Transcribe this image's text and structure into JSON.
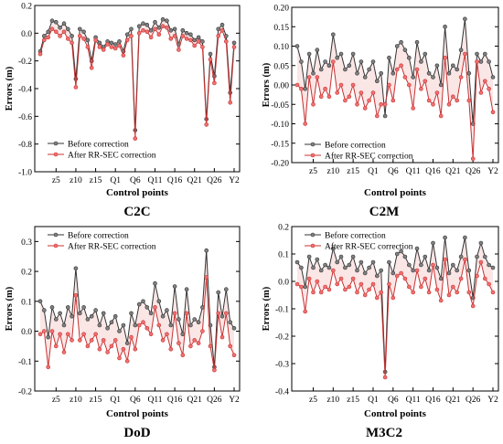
{
  "colors": {
    "before": "#333333",
    "before_fill": "#808080",
    "after": "#c83232",
    "after_fill": "#f07070",
    "band": "#f6c8c8"
  },
  "chart_data": [
    {
      "type": "line",
      "title": "C2C",
      "xlabel": "Control points",
      "ylabel": "Errors (m)",
      "ylim": [
        -1.0,
        0.2
      ],
      "yticks": [
        0.2,
        0.0,
        -0.2,
        -0.4,
        -0.6,
        -0.8,
        -1.0
      ],
      "ytick_labels": [
        "0.2",
        "0.0",
        "-0.2",
        "-0.4",
        "-0.6",
        "-0.8",
        "-1.0"
      ],
      "xlim": [
        1,
        50
      ],
      "xticks": [
        5,
        10,
        15,
        20,
        25,
        30,
        35,
        40,
        45,
        50
      ],
      "xtick_labels": [
        "z5",
        "z10",
        "z15",
        "Q1",
        "Q6",
        "Q11",
        "Q16",
        "Q21",
        "Q26",
        "Y2"
      ],
      "legend": "center-left",
      "series": [
        {
          "name": "Before correction",
          "values": [
            -0.13,
            -0.02,
            0.01,
            0.09,
            0.08,
            0.04,
            0.07,
            0.03,
            -0.02,
            -0.33,
            0.03,
            0.01,
            -0.05,
            -0.2,
            -0.03,
            -0.07,
            -0.1,
            -0.06,
            -0.07,
            -0.08,
            -0.06,
            -0.13,
            -0.01,
            0.03,
            -0.7,
            0.05,
            0.07,
            0.06,
            0.02,
            0.08,
            0.04,
            0.1,
            0.09,
            0.02,
            0.03,
            -0.08,
            0.02,
            0.0,
            -0.01,
            -0.05,
            -0.03,
            -0.06,
            -0.62,
            -0.15,
            -0.31,
            0.03,
            0.06,
            -0.02,
            -0.43,
            -0.07
          ]
        },
        {
          "name": "After RR-SEC correction",
          "values": [
            -0.15,
            -0.05,
            -0.03,
            0.03,
            0.01,
            -0.02,
            0.01,
            -0.04,
            -0.07,
            -0.39,
            -0.02,
            -0.04,
            -0.1,
            -0.25,
            -0.05,
            -0.1,
            -0.12,
            -0.08,
            -0.1,
            -0.11,
            -0.09,
            -0.16,
            -0.05,
            -0.02,
            -0.76,
            0.0,
            0.02,
            0.01,
            -0.03,
            0.03,
            -0.01,
            0.05,
            0.04,
            -0.04,
            -0.02,
            -0.12,
            -0.02,
            -0.04,
            -0.05,
            -0.09,
            -0.06,
            -0.1,
            -0.66,
            -0.19,
            -0.36,
            -0.02,
            0.02,
            -0.06,
            -0.5,
            -0.1
          ]
        }
      ]
    },
    {
      "type": "line",
      "title": "C2M",
      "xlabel": "Control points",
      "ylabel": "Errors (m)",
      "ylim": [
        -0.2,
        0.2
      ],
      "yticks": [
        0.2,
        0.15,
        0.1,
        0.05,
        0.0,
        -0.05,
        -0.1,
        -0.15,
        -0.2
      ],
      "ytick_labels": [
        "0.20",
        "0.15",
        "0.10",
        "0.05",
        "0.00",
        "-0.05",
        "-0.10",
        "-0.15",
        "-0.20"
      ],
      "xlim": [
        1,
        50
      ],
      "xticks": [
        5,
        10,
        15,
        20,
        25,
        30,
        35,
        40,
        45,
        50
      ],
      "xtick_labels": [
        "z5",
        "z10",
        "z15",
        "Q1",
        "Q6",
        "Q11",
        "Q16",
        "Q21",
        "Q26",
        "Y2"
      ],
      "legend": "lower-left",
      "series": [
        {
          "name": "Before correction",
          "values": [
            0.1,
            0.06,
            -0.01,
            0.08,
            0.03,
            0.09,
            0.04,
            0.06,
            0.05,
            0.13,
            0.07,
            0.08,
            0.04,
            0.05,
            0.08,
            0.03,
            0.06,
            0.02,
            0.04,
            0.06,
            0.01,
            0.03,
            -0.08,
            0.07,
            0.03,
            0.1,
            0.11,
            0.09,
            0.07,
            0.02,
            0.11,
            0.06,
            0.08,
            0.03,
            0.02,
            0.05,
            0.0,
            0.15,
            0.03,
            0.05,
            0.04,
            0.09,
            0.17,
            0.03,
            -0.1,
            0.08,
            0.06,
            0.08,
            0.06,
            0.02
          ]
        },
        {
          "name": "After RR-SEC correction",
          "values": [
            0.0,
            -0.01,
            -0.1,
            0.02,
            -0.05,
            0.02,
            -0.03,
            -0.01,
            -0.03,
            0.06,
            -0.02,
            0.0,
            -0.04,
            -0.03,
            0.0,
            -0.05,
            -0.02,
            -0.06,
            -0.04,
            -0.02,
            -0.08,
            -0.05,
            -0.05,
            0.0,
            -0.04,
            0.04,
            0.05,
            0.02,
            0.0,
            -0.06,
            0.04,
            -0.01,
            0.01,
            -0.04,
            -0.05,
            -0.02,
            -0.08,
            0.07,
            -0.05,
            -0.03,
            -0.04,
            0.02,
            0.08,
            -0.04,
            -0.19,
            0.06,
            -0.02,
            0.01,
            -0.01,
            -0.07
          ]
        }
      ]
    },
    {
      "type": "line",
      "title": "DoD",
      "xlabel": "Control points",
      "ylabel": "Errors (m)",
      "ylim": [
        -0.2,
        0.35
      ],
      "yticks": [
        0.3,
        0.2,
        0.1,
        0.0,
        -0.1,
        -0.2
      ],
      "ytick_labels": [
        "0.3",
        "0.2",
        "0.1",
        "0.0",
        "-0.1",
        "-0.2"
      ],
      "xlim": [
        1,
        50
      ],
      "xticks": [
        5,
        10,
        15,
        20,
        25,
        30,
        35,
        40,
        45,
        50
      ],
      "xtick_labels": [
        "z5",
        "z10",
        "z15",
        "Q1",
        "Q6",
        "Q11",
        "Q16",
        "Q21",
        "Q26",
        "Y2"
      ],
      "legend": "top-left",
      "series": [
        {
          "name": "Before correction",
          "values": [
            0.1,
            0.07,
            -0.02,
            0.08,
            0.04,
            0.06,
            0.02,
            0.08,
            0.05,
            0.21,
            0.06,
            0.08,
            0.04,
            0.05,
            0.07,
            0.02,
            0.06,
            0.01,
            0.03,
            0.05,
            0.0,
            0.02,
            -0.04,
            0.06,
            0.02,
            0.09,
            0.1,
            0.08,
            0.06,
            0.16,
            0.1,
            0.05,
            0.07,
            0.02,
            0.15,
            0.04,
            -0.01,
            0.14,
            0.02,
            0.04,
            0.03,
            0.08,
            0.27,
            0.02,
            -0.12,
            0.13,
            0.05,
            0.14,
            0.03,
            0.01
          ]
        },
        {
          "name": "After RR-SEC correction",
          "values": [
            -0.01,
            0.0,
            -0.12,
            0.0,
            -0.05,
            -0.01,
            -0.07,
            -0.01,
            -0.03,
            0.12,
            -0.03,
            -0.01,
            -0.05,
            -0.03,
            -0.01,
            -0.06,
            -0.03,
            -0.07,
            -0.05,
            -0.03,
            -0.09,
            -0.06,
            -0.1,
            -0.02,
            -0.06,
            0.02,
            0.03,
            0.01,
            -0.01,
            0.08,
            0.02,
            -0.03,
            -0.01,
            -0.06,
            0.06,
            -0.04,
            -0.08,
            0.06,
            -0.05,
            -0.03,
            -0.04,
            0.0,
            0.18,
            -0.05,
            -0.13,
            0.06,
            -0.02,
            0.06,
            -0.05,
            -0.08
          ]
        }
      ]
    },
    {
      "type": "line",
      "title": "M3C2",
      "xlabel": "Control points",
      "ylabel": "Errors (m)",
      "ylim": [
        -0.4,
        0.2
      ],
      "yticks": [
        0.2,
        0.1,
        0.0,
        -0.1,
        -0.2,
        -0.3,
        -0.4
      ],
      "ytick_labels": [
        "0.2",
        "0.1",
        "0.0",
        "-0.1",
        "-0.2",
        "-0.3",
        "-0.4"
      ],
      "xlim": [
        1,
        50
      ],
      "xticks": [
        5,
        10,
        15,
        20,
        25,
        30,
        35,
        40,
        45,
        50
      ],
      "xtick_labels": [
        "z5",
        "z10",
        "z15",
        "Q1",
        "Q6",
        "Q11",
        "Q16",
        "Q21",
        "Q26",
        "Y2"
      ],
      "legend": "top-left",
      "series": [
        {
          "name": "Before correction",
          "values": [
            0.07,
            0.05,
            -0.02,
            0.09,
            0.05,
            0.08,
            0.04,
            0.06,
            0.05,
            0.12,
            0.07,
            0.09,
            0.05,
            0.06,
            0.09,
            0.04,
            0.07,
            0.03,
            0.05,
            0.07,
            0.02,
            0.04,
            -0.33,
            0.07,
            0.03,
            0.1,
            0.11,
            0.09,
            0.06,
            0.04,
            0.12,
            0.06,
            0.09,
            0.04,
            0.14,
            0.05,
            0.01,
            0.16,
            0.03,
            0.06,
            0.04,
            0.09,
            0.16,
            0.04,
            -0.06,
            0.09,
            0.14,
            0.09,
            0.06,
            0.05
          ]
        },
        {
          "name": "After RR-SEC correction",
          "values": [
            -0.01,
            -0.02,
            -0.11,
            0.01,
            -0.04,
            0.0,
            -0.04,
            -0.02,
            -0.03,
            0.04,
            -0.01,
            0.01,
            -0.03,
            -0.02,
            0.01,
            -0.04,
            -0.01,
            -0.05,
            -0.03,
            -0.01,
            -0.06,
            -0.04,
            -0.35,
            -0.01,
            -0.06,
            0.02,
            0.03,
            0.01,
            -0.02,
            -0.04,
            0.04,
            -0.02,
            0.01,
            -0.04,
            0.06,
            -0.03,
            -0.07,
            0.08,
            -0.05,
            -0.02,
            -0.04,
            0.01,
            0.08,
            -0.04,
            -0.09,
            0.02,
            0.07,
            0.01,
            -0.01,
            -0.04
          ]
        }
      ]
    }
  ]
}
